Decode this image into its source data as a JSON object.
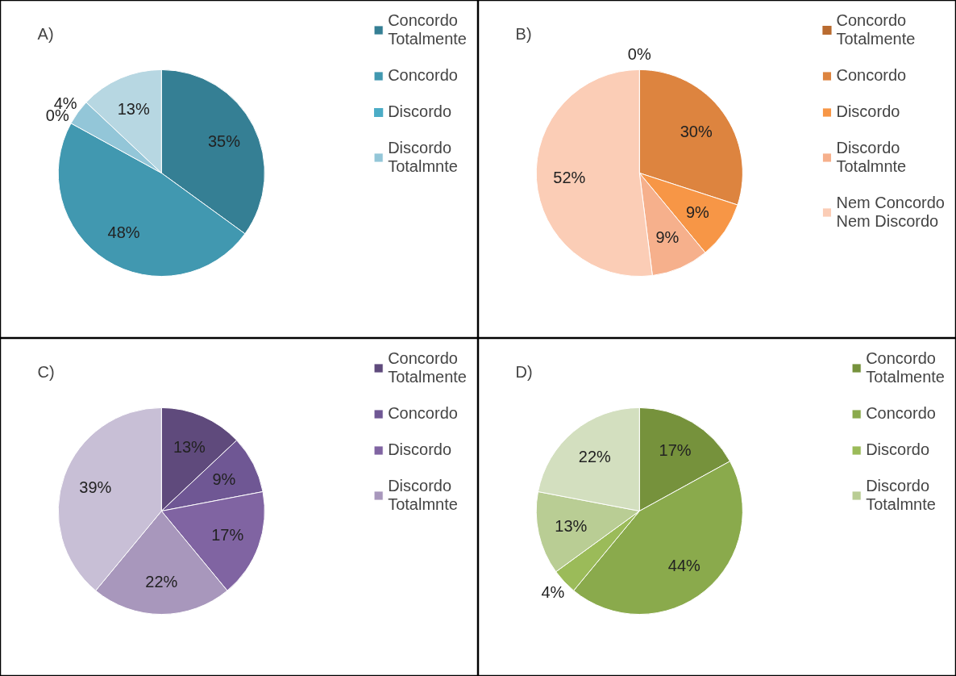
{
  "chart_data": [
    {
      "type": "pie",
      "title": "A)",
      "categories": [
        "Concordo Totalmente",
        "Concordo",
        "Discordo",
        "Discordo Totalmnte",
        null
      ],
      "values": [
        35,
        48,
        0,
        4,
        13
      ],
      "colors": [
        "#357f94",
        "#4198b0",
        "#4bacc6",
        "#93c6d8",
        "#b7d7e2"
      ],
      "value_labels": [
        "35%",
        "48%",
        "0%",
        "4%",
        "13%"
      ],
      "legend": "right"
    },
    {
      "type": "pie",
      "title": "B)",
      "categories": [
        "Concordo Totalmente",
        "Concordo",
        "Discordo",
        "Discordo Totalmnte",
        "Nem Concordo Nem Discordo"
      ],
      "values": [
        0,
        30,
        9,
        9,
        52
      ],
      "colors": [
        "#b96b30",
        "#dd843f",
        "#f79646",
        "#f6b08c",
        "#fbcdb6"
      ],
      "value_labels": [
        "0%",
        "30%",
        "9%",
        "9%",
        "52%"
      ],
      "legend": "right"
    },
    {
      "type": "pie",
      "title": "C)",
      "categories": [
        "Concordo Totalmente",
        "Concordo",
        "Discordo",
        "Discordo Totalmnte",
        null
      ],
      "values": [
        13,
        9,
        17,
        22,
        39
      ],
      "colors": [
        "#5f4a7c",
        "#6f5794",
        "#8064a2",
        "#a897bc",
        "#c8bfd6"
      ],
      "value_labels": [
        "13%",
        "9%",
        "17%",
        "22%",
        "39%"
      ],
      "legend": "right"
    },
    {
      "type": "pie",
      "title": "D)",
      "categories": [
        "Concordo Totalmente",
        "Concordo",
        "Discordo",
        "Discordo Totalmnte",
        null
      ],
      "values": [
        17,
        44,
        4,
        13,
        22
      ],
      "colors": [
        "#76923c",
        "#8aaa4c",
        "#9bbb59",
        "#b9cd94",
        "#d3dfbf"
      ],
      "value_labels": [
        "17%",
        "44%",
        "4%",
        "13%",
        "22%"
      ],
      "legend": "right"
    }
  ]
}
